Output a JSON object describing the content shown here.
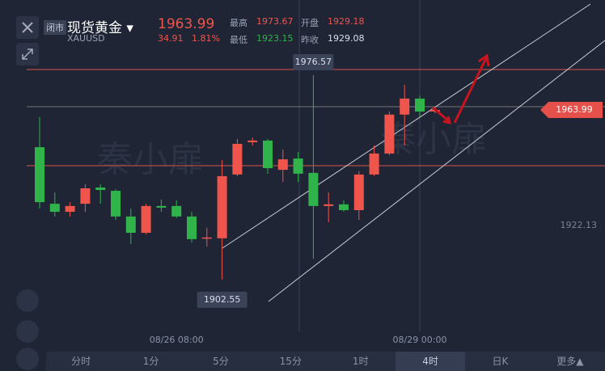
{
  "header": {
    "status": "闭市",
    "name": "现货黄金",
    "symbol": "XAUUSD",
    "price": "1963.99",
    "change": "34.91",
    "change_pct": "1.81%",
    "high_label": "最高",
    "high": "1973.67",
    "low_label": "最低",
    "low": "1923.15",
    "open_label": "开盘",
    "open": "1929.18",
    "prev_label": "昨收",
    "prev": "1929.08"
  },
  "watermark": "秦小扉",
  "tabs": [
    "分时",
    "1分",
    "5分",
    "15分",
    "1时",
    "4时",
    "日K",
    "更多▲"
  ],
  "chart_data": {
    "type": "candlestick",
    "up_color": "#f0554b",
    "down_color": "#2fb34a",
    "categories": [
      null,
      null,
      null,
      null,
      null,
      null,
      null,
      null,
      null,
      "08/26 08:00",
      null,
      null,
      null,
      null,
      null,
      null,
      null,
      null,
      null,
      null,
      null,
      null,
      null,
      null,
      null,
      "08/29 00:00",
      null
    ],
    "open": [
      1950.5,
      1930.0,
      1927.1,
      1930.0,
      1935.9,
      1934.7,
      1925.4,
      1919.5,
      1929.2,
      1929.2,
      1925.4,
      1917.5,
      1917.5,
      1940.6,
      1952.3,
      1952.9,
      1942.3,
      1946.4,
      1941.2,
      1929.2,
      1929.8,
      1927.7,
      1940.6,
      1948.2,
      1962.3,
      1968.1,
      1963.4
    ],
    "close": [
      1930.6,
      1927.1,
      1929.2,
      1935.6,
      1935.0,
      1925.4,
      1919.5,
      1929.2,
      1928.6,
      1925.4,
      1917.2,
      1917.8,
      1940.0,
      1951.7,
      1952.9,
      1942.9,
      1946.1,
      1940.9,
      1929.2,
      1929.8,
      1927.7,
      1940.6,
      1948.2,
      1962.3,
      1968.1,
      1963.4,
      1963.99
    ],
    "high": [
      1961.4,
      1934.1,
      1930.6,
      1937.1,
      1937.1,
      1935.3,
      1928.3,
      1930.0,
      1931.5,
      1931.2,
      1927.1,
      1921.3,
      1945.8,
      1953.5,
      1954.0,
      1953.5,
      1949.6,
      1948.8,
      1976.57,
      1934.1,
      1931.2,
      1941.8,
      1951.1,
      1963.4,
      1973.1,
      1969.1,
      1965.2
    ],
    "low": [
      1928.3,
      1925.4,
      1925.4,
      1927.1,
      1930.0,
      1924.2,
      1915.4,
      1918.9,
      1927.1,
      1924.8,
      1916.0,
      1914.5,
      1902.55,
      1940.0,
      1951.1,
      1940.9,
      1937.9,
      1937.9,
      1910.1,
      1923.3,
      1927.1,
      1924.2,
      1940.0,
      1947.6,
      1951.1,
      1961.4,
      1962.8
    ],
    "ylim": [
      1876.47,
      2003.8
    ],
    "yticks": [
      1922.13
    ],
    "max_label": 1976.57,
    "min_label": 1902.55,
    "last_price": 1963.99
  }
}
